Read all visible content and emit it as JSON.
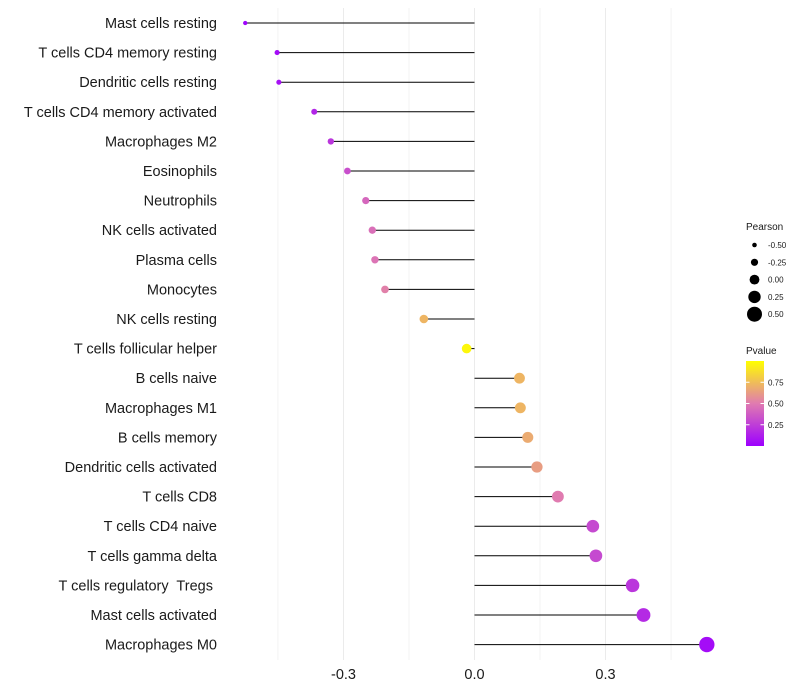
{
  "chart_data": {
    "type": "lollipop",
    "x_ticks": [
      -0.3,
      0.0,
      0.3
    ],
    "x_tick_labels": [
      "-0.3",
      "0.0",
      "0.3"
    ],
    "xlim": [
      -0.53,
      0.56
    ],
    "grid": "vertical",
    "points": [
      {
        "label": "Mast cells resting",
        "pearson": -0.525,
        "pvalue": 0.02
      },
      {
        "label": "T cells CD4 memory resting",
        "pearson": -0.452,
        "pvalue": 0.05
      },
      {
        "label": "Dendritic cells resting",
        "pearson": -0.448,
        "pvalue": 0.07
      },
      {
        "label": "T cells CD4 memory activated",
        "pearson": -0.367,
        "pvalue": 0.15
      },
      {
        "label": "Macrophages M2",
        "pearson": -0.329,
        "pvalue": 0.22
      },
      {
        "label": "Eosinophils",
        "pearson": -0.291,
        "pvalue": 0.32
      },
      {
        "label": "Neutrophils",
        "pearson": -0.249,
        "pvalue": 0.42
      },
      {
        "label": "NK cells activated",
        "pearson": -0.234,
        "pvalue": 0.45
      },
      {
        "label": "Plasma cells",
        "pearson": -0.228,
        "pvalue": 0.47
      },
      {
        "label": "Monocytes",
        "pearson": -0.205,
        "pvalue": 0.52
      },
      {
        "label": "NK cells resting",
        "pearson": -0.116,
        "pvalue": 0.72
      },
      {
        "label": "T cells follicular helper",
        "pearson": -0.018,
        "pvalue": 0.97
      },
      {
        "label": "B cells naive",
        "pearson": 0.103,
        "pvalue": 0.72
      },
      {
        "label": "Macrophages M1",
        "pearson": 0.105,
        "pvalue": 0.72
      },
      {
        "label": "B cells memory",
        "pearson": 0.122,
        "pvalue": 0.68
      },
      {
        "label": "Dendritic cells activated",
        "pearson": 0.143,
        "pvalue": 0.63
      },
      {
        "label": "T cells CD8",
        "pearson": 0.191,
        "pvalue": 0.5
      },
      {
        "label": "T cells CD4 naive",
        "pearson": 0.271,
        "pvalue": 0.3
      },
      {
        "label": "T cells gamma delta",
        "pearson": 0.278,
        "pvalue": 0.3
      },
      {
        "label": "T cells regulatory  Tregs ",
        "pearson": 0.362,
        "pvalue": 0.22
      },
      {
        "label": "Mast cells activated",
        "pearson": 0.387,
        "pvalue": 0.17
      },
      {
        "label": "Macrophages M0",
        "pearson": 0.532,
        "pvalue": 0.05
      }
    ],
    "legend_size": {
      "title": "Pearson",
      "values": [
        -0.5,
        -0.25,
        0.0,
        0.25,
        0.5
      ],
      "labels": [
        "-0.50",
        "-0.25",
        "0.00",
        "0.25",
        "0.50"
      ],
      "position": "right"
    },
    "legend_color": {
      "title": "Pvalue",
      "ticks": [
        0.25,
        0.5,
        0.75
      ],
      "tick_labels": [
        "0.25",
        "0.50",
        "0.75"
      ],
      "range": [
        0.0,
        1.0
      ],
      "low_color": "#9d00ff",
      "mid_color": "#e07bb0",
      "high_color": "#ffff00",
      "position": "right"
    },
    "colors": {
      "stem": "#000000",
      "grid": "#ebebeb"
    }
  }
}
